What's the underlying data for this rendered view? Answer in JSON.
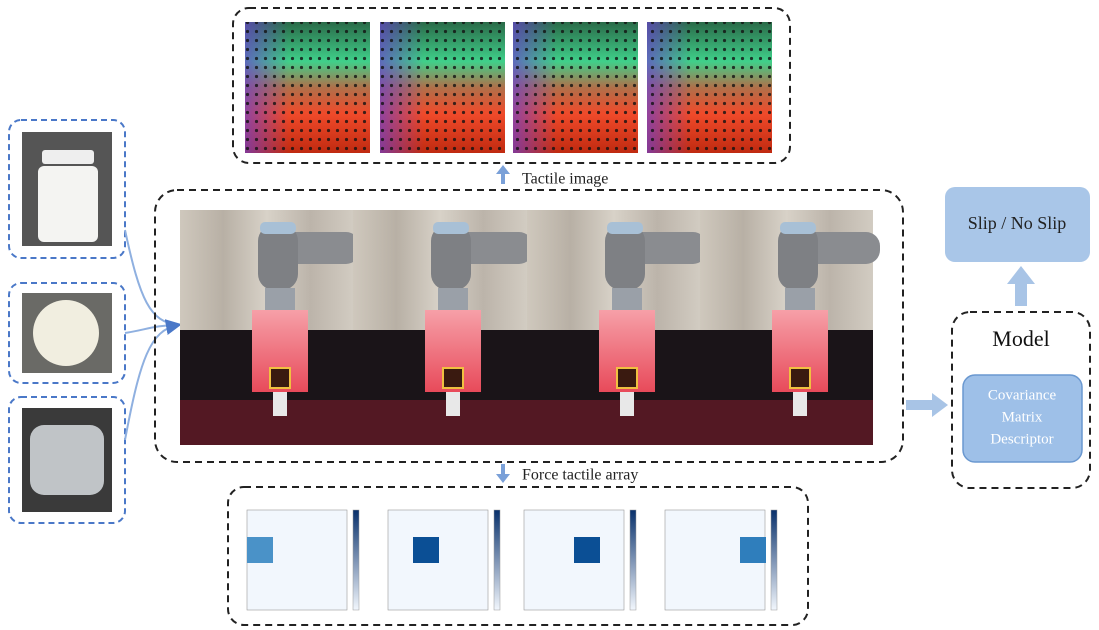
{
  "labels": {
    "tactile_image": "Tactile image",
    "force_tactile_array": "Force tactile array"
  },
  "model": {
    "title": "Model",
    "descriptor": [
      "Covariance",
      "Matrix",
      "Descriptor"
    ]
  },
  "output": "Slip / No Slip"
}
